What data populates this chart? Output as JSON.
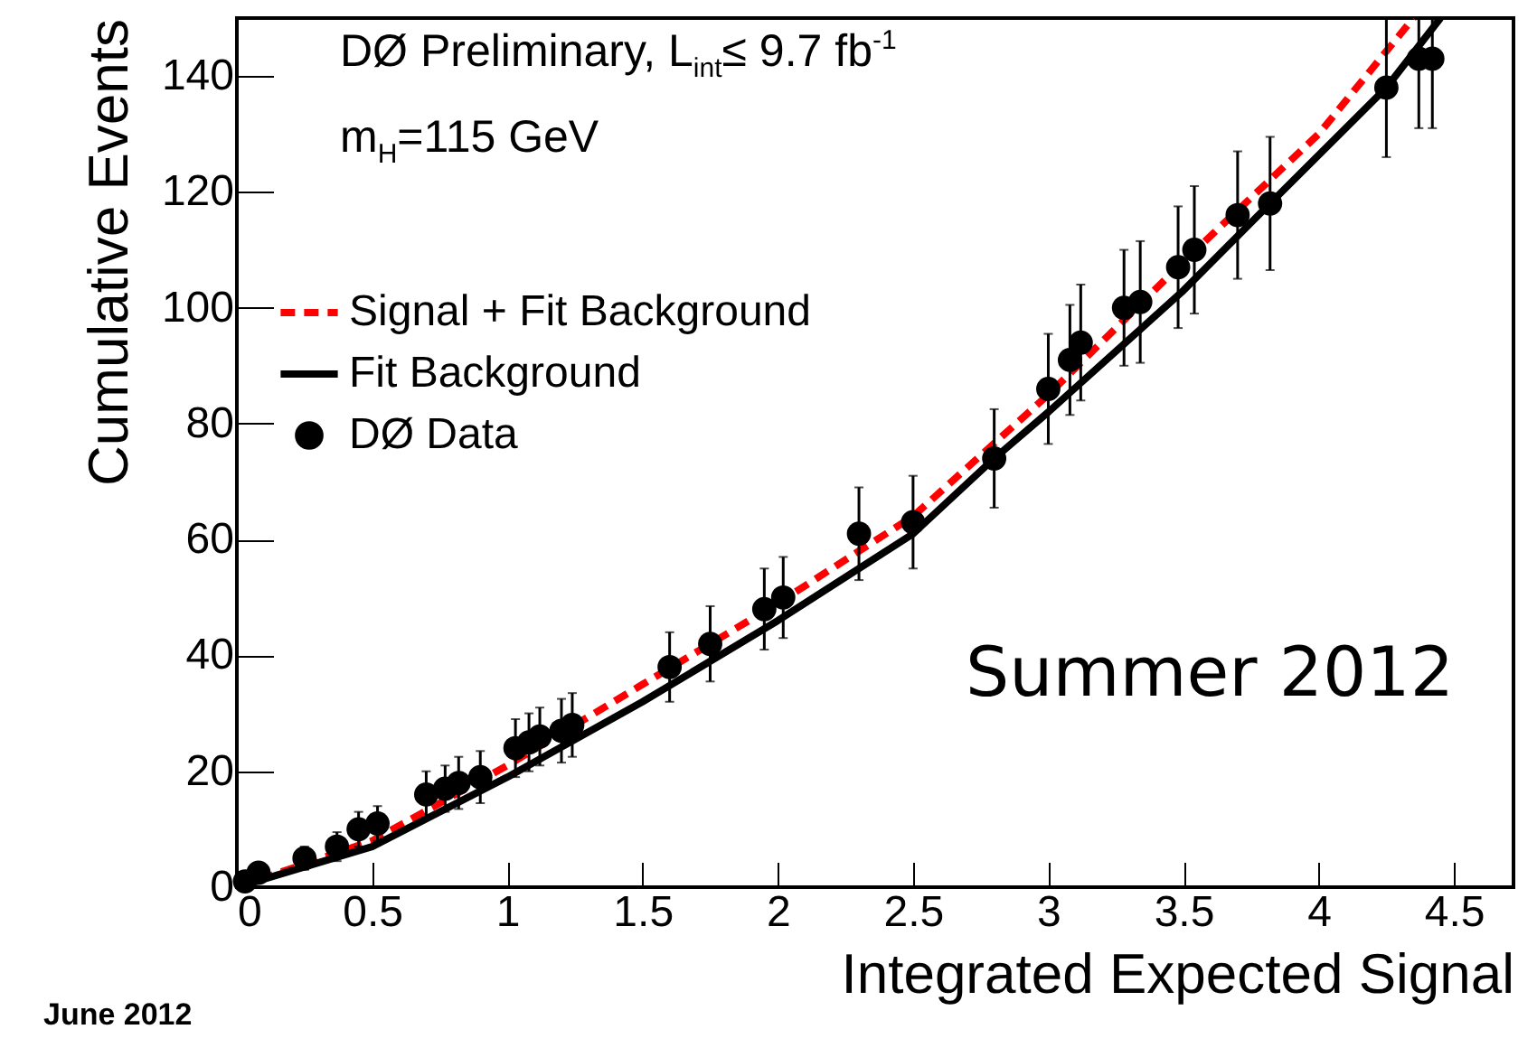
{
  "chart_data": {
    "type": "line",
    "xlabel": "Integrated Expected Signal",
    "ylabel": "Cumulative Events",
    "xlim": [
      0,
      4.72
    ],
    "ylim": [
      0,
      150
    ],
    "xticks": [
      0,
      0.5,
      1,
      1.5,
      2,
      2.5,
      3,
      3.5,
      4,
      4.5
    ],
    "yticks": [
      0,
      20,
      40,
      60,
      80,
      100,
      120,
      140
    ],
    "legend": "top left",
    "grid": false,
    "series": [
      {
        "name": "Signal + Fit Background",
        "color": "#ff0000",
        "line_style": "dashed",
        "x": [
          0,
          0.5,
          1,
          1.5,
          2,
          2.5,
          3,
          3.5,
          4,
          4.35
        ],
        "values": [
          0,
          8,
          21,
          35,
          49,
          64,
          85,
          108,
          130,
          150
        ]
      },
      {
        "name": "Fit Background",
        "color": "#000000",
        "line_style": "solid",
        "x": [
          0,
          0.5,
          1,
          1.5,
          2,
          2.5,
          2.8,
          3,
          3.5,
          3.82,
          4.25,
          4.45
        ],
        "values": [
          0,
          7,
          19,
          32,
          46,
          61,
          74,
          82,
          103,
          118,
          138,
          150
        ]
      },
      {
        "name": "DØ Data",
        "type": "scatter",
        "marker": "circle",
        "color": "#000000",
        "x": [
          0.03,
          0.08,
          0.25,
          0.37,
          0.45,
          0.52,
          0.7,
          0.77,
          0.82,
          0.9,
          1.03,
          1.08,
          1.12,
          1.2,
          1.24,
          1.6,
          1.75,
          1.95,
          2.02,
          2.3,
          2.5,
          2.8,
          3.0,
          3.08,
          3.12,
          3.28,
          3.34,
          3.48,
          3.54,
          3.7,
          3.82,
          4.25,
          4.37,
          4.42
        ],
        "values": [
          1,
          2.5,
          5,
          7,
          10,
          11,
          16,
          17,
          18,
          19,
          24,
          25,
          26,
          27,
          28,
          38,
          42,
          48,
          50,
          61,
          63,
          74,
          86,
          91,
          94,
          100,
          101,
          107,
          110,
          116,
          118,
          138,
          143,
          143
        ],
        "errors": [
          1,
          1.5,
          2,
          2.5,
          3,
          3,
          4,
          4,
          4.5,
          4.5,
          5,
          5,
          5,
          5.5,
          5.5,
          6,
          6.5,
          7,
          7,
          8,
          8,
          8.5,
          9.5,
          9.5,
          10,
          10,
          10.5,
          10.5,
          11,
          11,
          11.5,
          [
            126,
            150
          ],
          [
            131,
            150
          ],
          [
            131,
            150
          ]
        ]
      }
    ],
    "annotations": [
      "DØ Preliminary, L$_{int}$≤ 9.7 fb$^{-1}$",
      "m$_{H}$=115 GeV",
      "Summer 2012",
      "June 2012"
    ]
  }
}
